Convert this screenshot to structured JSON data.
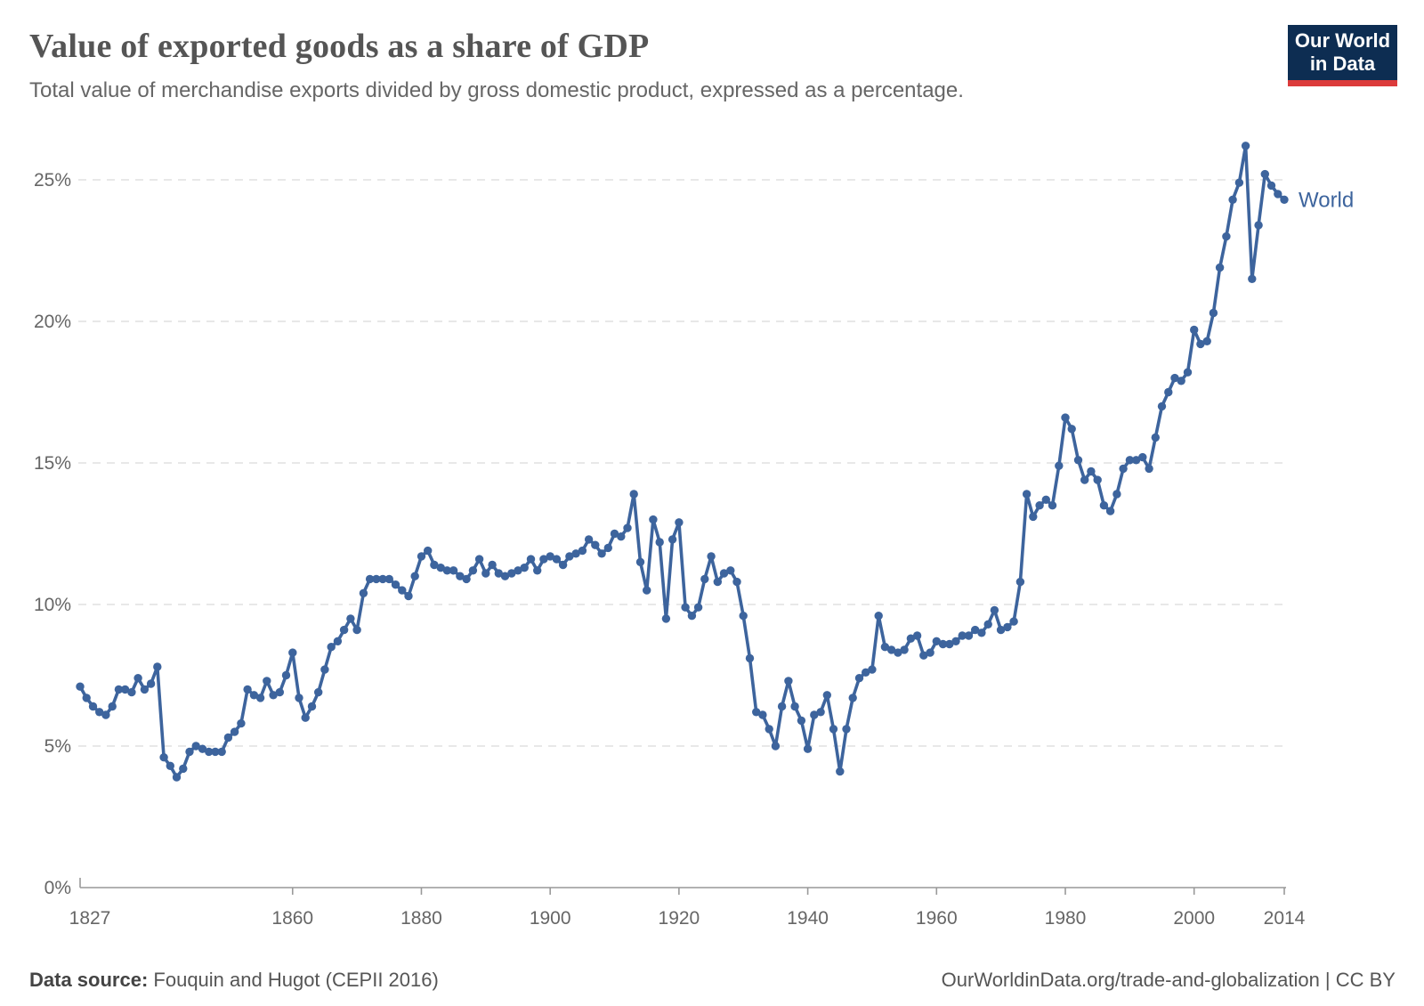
{
  "header": {
    "title": "Value of exported goods as a share of GDP",
    "subtitle": "Total value of merchandise exports divided by gross domestic product, expressed as a percentage."
  },
  "logo": {
    "line1": "Our World",
    "line2": "in Data",
    "bg_color": "#0d2d52",
    "bar_color": "#dc3b3b"
  },
  "chart_data": {
    "type": "line",
    "title": "Value of exported goods as a share of GDP",
    "x_start": 1827,
    "x_step": 1,
    "x_end": 2014,
    "series": [
      {
        "name": "World",
        "color": "#3d649d",
        "values": [
          7.1,
          6.7,
          6.4,
          6.2,
          6.1,
          6.4,
          7.0,
          7.0,
          6.9,
          7.4,
          7.0,
          7.2,
          7.8,
          4.6,
          4.3,
          3.9,
          4.2,
          4.8,
          5.0,
          4.9,
          4.8,
          4.8,
          4.8,
          5.3,
          5.5,
          5.8,
          7.0,
          6.8,
          6.7,
          7.3,
          6.8,
          6.9,
          7.5,
          8.3,
          6.7,
          6.0,
          6.4,
          6.9,
          7.7,
          8.5,
          8.7,
          9.1,
          9.5,
          9.1,
          10.4,
          10.9,
          10.9,
          10.9,
          10.9,
          10.7,
          10.5,
          10.3,
          11.0,
          11.7,
          11.9,
          11.4,
          11.3,
          11.2,
          11.2,
          11.0,
          10.9,
          11.2,
          11.6,
          11.1,
          11.4,
          11.1,
          11.0,
          11.1,
          11.2,
          11.3,
          11.6,
          11.2,
          11.6,
          11.7,
          11.6,
          11.4,
          11.7,
          11.8,
          11.9,
          12.3,
          12.1,
          11.8,
          12.0,
          12.5,
          12.4,
          12.7,
          13.9,
          11.5,
          10.5,
          13.0,
          12.2,
          9.5,
          12.3,
          12.9,
          9.9,
          9.6,
          9.9,
          10.9,
          11.7,
          10.8,
          11.1,
          11.2,
          10.8,
          9.6,
          8.1,
          6.2,
          6.1,
          5.6,
          5.0,
          6.4,
          7.3,
          6.4,
          5.9,
          4.9,
          6.1,
          6.2,
          6.8,
          5.6,
          4.1,
          5.6,
          6.7,
          7.4,
          7.6,
          7.7,
          9.6,
          8.5,
          8.4,
          8.3,
          8.4,
          8.8,
          8.9,
          8.2,
          8.3,
          8.7,
          8.6,
          8.6,
          8.7,
          8.9,
          8.9,
          9.1,
          9.0,
          9.3,
          9.8,
          9.1,
          9.2,
          9.4,
          10.8,
          13.9,
          13.1,
          13.5,
          13.7,
          13.5,
          14.9,
          16.6,
          16.2,
          15.1,
          14.4,
          14.7,
          14.4,
          13.5,
          13.3,
          13.9,
          14.8,
          15.1,
          15.1,
          15.2,
          14.8,
          15.9,
          17.0,
          17.5,
          18.0,
          17.9,
          18.2,
          19.7,
          19.2,
          19.3,
          20.3,
          21.9,
          23.0,
          24.3,
          24.9,
          26.2,
          21.5,
          23.4,
          25.2,
          24.8,
          24.5,
          24.3
        ]
      }
    ],
    "xlabel": "",
    "ylabel": "",
    "xlim": [
      1827,
      2014
    ],
    "ylim": [
      0,
      26.5
    ],
    "xticks": [
      1827,
      1860,
      1880,
      1900,
      1920,
      1940,
      1960,
      1980,
      2000,
      2014
    ],
    "yticks": [
      0,
      5,
      10,
      15,
      20,
      25
    ],
    "ytick_suffix": "%",
    "grid": "horizontal-dashed",
    "legend_position": "end-of-line-label",
    "colors": {
      "line": "#3d649d",
      "grid": "#dadada",
      "axis": "#999999",
      "tick_text": "#666666"
    }
  },
  "footer": {
    "datasource_label": "Data source:",
    "datasource_value": "Fouquin and Hugot (CEPII 2016)",
    "right_text": "OurWorldinData.org/trade-and-globalization | CC BY"
  }
}
